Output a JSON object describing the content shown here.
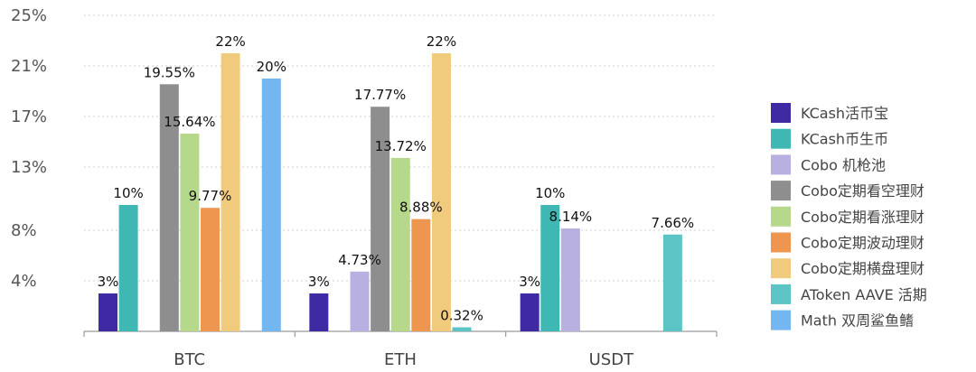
{
  "chart_data": {
    "type": "bar",
    "categories": [
      "BTC",
      "ETH",
      "USDT"
    ],
    "y_ticks": [
      "25%",
      "21%",
      "17%",
      "13%",
      "8%",
      "4%"
    ],
    "y_tick_values": [
      25,
      21,
      17,
      13,
      8,
      4
    ],
    "ylim": [
      0,
      25
    ],
    "grid": true,
    "legend_position": "right",
    "series": [
      {
        "name": "KCash活币宝",
        "color": "#3f2aa3",
        "values": [
          3,
          3,
          3
        ],
        "labels": [
          "3%",
          "3%",
          "3%"
        ]
      },
      {
        "name": "KCash币生币",
        "color": "#3fb8b4",
        "values": [
          10,
          null,
          10
        ],
        "labels": [
          "10%",
          "",
          "10%"
        ]
      },
      {
        "name": "Cobo 机枪池",
        "color": "#b8b0e0",
        "values": [
          null,
          4.73,
          8.14
        ],
        "labels": [
          "",
          "4.73%",
          "8.14%"
        ]
      },
      {
        "name": "Cobo定期看空理财",
        "color": "#8e8e8e",
        "values": [
          19.55,
          17.77,
          null
        ],
        "labels": [
          "19.55%",
          "17.77%",
          ""
        ]
      },
      {
        "name": "Cobo定期看涨理财",
        "color": "#b5d88a",
        "values": [
          15.64,
          13.72,
          null
        ],
        "labels": [
          "15.64%",
          "13.72%",
          ""
        ]
      },
      {
        "name": "Cobo定期波动理财",
        "color": "#ee9550",
        "values": [
          9.77,
          8.88,
          null
        ],
        "labels": [
          "9.77%",
          "8.88%",
          ""
        ]
      },
      {
        "name": "Cobo定期横盘理财",
        "color": "#f0cb7e",
        "values": [
          22,
          22,
          null
        ],
        "labels": [
          "22%",
          "22%",
          ""
        ]
      },
      {
        "name": "AToken AAVE 活期",
        "color": "#5cc4c4",
        "values": [
          null,
          0.32,
          7.66
        ],
        "labels": [
          "",
          "0.32%",
          "7.66%"
        ]
      },
      {
        "name": "Math 双周鲨鱼鳍",
        "color": "#74b6f0",
        "values": [
          20,
          null,
          null
        ],
        "labels": [
          "20%",
          "",
          ""
        ]
      }
    ]
  }
}
